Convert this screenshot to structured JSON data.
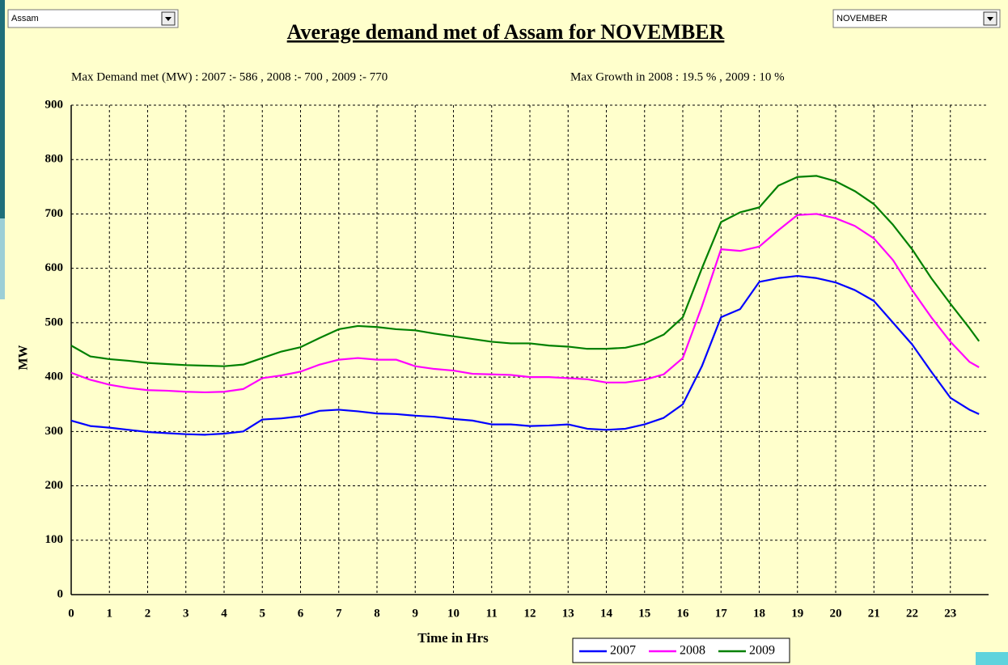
{
  "controls": {
    "region": "Assam",
    "month": "NOVEMBER"
  },
  "chart_data": {
    "type": "line",
    "title": "Average demand met of Assam for NOVEMBER",
    "annotations": [
      "Max Demand met (MW) : 2007 :- 586 , 2008 :- 700 , 2009 :- 770",
      "Max Growth in 2008 : 19.5 % , 2009 : 10 %"
    ],
    "x_label": "Time in Hrs",
    "y_label": "MW",
    "x": [
      0,
      0.5,
      1,
      1.5,
      2,
      2.5,
      3,
      3.5,
      4,
      4.5,
      5,
      5.5,
      6,
      6.5,
      7,
      7.5,
      8,
      8.5,
      9,
      9.5,
      10,
      10.5,
      11,
      11.5,
      12,
      12.5,
      13,
      13.5,
      14,
      14.5,
      15,
      15.5,
      16,
      16.5,
      17,
      17.5,
      18,
      18.5,
      19,
      19.5,
      20,
      20.5,
      21,
      21.5,
      22,
      22.5,
      23,
      23.5,
      23.75
    ],
    "series": [
      {
        "name": "2007",
        "color": "#0000ff",
        "values": [
          320,
          310,
          307,
          303,
          299,
          297,
          295,
          294,
          296,
          300,
          322,
          324,
          328,
          338,
          340,
          337,
          333,
          332,
          329,
          327,
          323,
          320,
          313,
          313,
          310,
          311,
          313,
          305,
          303,
          305,
          313,
          325,
          350,
          420,
          510,
          525,
          575,
          582,
          586,
          582,
          574,
          560,
          540,
          500,
          460,
          410,
          362,
          340,
          332
        ]
      },
      {
        "name": "2008",
        "color": "#ff00ff",
        "values": [
          408,
          395,
          386,
          380,
          376,
          375,
          373,
          372,
          373,
          378,
          398,
          403,
          410,
          423,
          432,
          435,
          432,
          432,
          420,
          415,
          412,
          406,
          405,
          404,
          400,
          400,
          398,
          396,
          390,
          390,
          395,
          405,
          435,
          530,
          635,
          632,
          640,
          670,
          698,
          700,
          692,
          678,
          655,
          615,
          560,
          510,
          465,
          428,
          418
        ]
      },
      {
        "name": "2009",
        "color": "#008000",
        "values": [
          458,
          438,
          433,
          430,
          426,
          424,
          422,
          421,
          420,
          423,
          435,
          447,
          455,
          472,
          488,
          494,
          492,
          488,
          486,
          480,
          475,
          470,
          465,
          462,
          462,
          458,
          456,
          452,
          452,
          454,
          462,
          478,
          510,
          600,
          685,
          703,
          712,
          752,
          768,
          770,
          760,
          742,
          718,
          680,
          635,
          582,
          535,
          490,
          466
        ]
      }
    ],
    "xlim": [
      0,
      24
    ],
    "xticks": [
      0,
      1,
      2,
      3,
      4,
      5,
      6,
      7,
      8,
      9,
      10,
      11,
      12,
      13,
      14,
      15,
      16,
      17,
      18,
      19,
      20,
      21,
      22,
      23
    ],
    "ylim": [
      0,
      900
    ],
    "yticks": [
      0,
      100,
      200,
      300,
      400,
      500,
      600,
      700,
      800,
      900
    ],
    "grid": true,
    "legend": "bottom"
  }
}
